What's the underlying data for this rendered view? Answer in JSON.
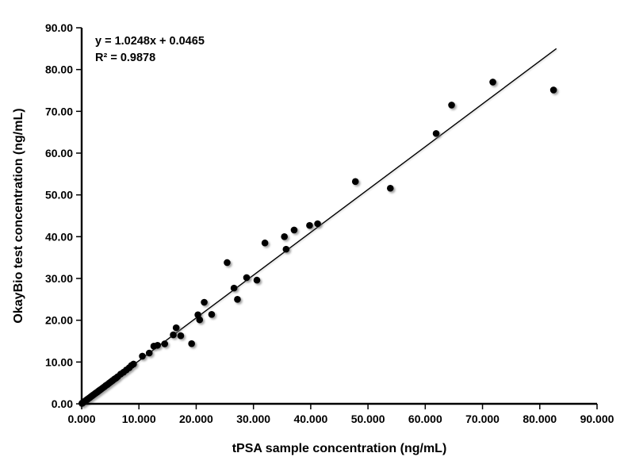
{
  "figure": {
    "kind": "scatter-plot-with-trendline"
  },
  "chart_data": {
    "type": "scatter",
    "title": "",
    "xlabel": "tPSA sample concentration (ng/mL)",
    "ylabel": "OkayBio test concentration (ng/mL)",
    "xlim": [
      0,
      90
    ],
    "ylim": [
      0,
      90
    ],
    "grid": false,
    "legend": false,
    "marker_color": "#000000",
    "line_color": "#000000",
    "x_tick_values": [
      0,
      10,
      20,
      30,
      40,
      50,
      60,
      70,
      80,
      90
    ],
    "x_tick_labels": [
      "0.000",
      "10.000",
      "20.000",
      "30.000",
      "40.000",
      "50.000",
      "60.000",
      "70.000",
      "80.000",
      "90.000"
    ],
    "y_tick_values": [
      0,
      10,
      20,
      30,
      40,
      50,
      60,
      70,
      80,
      90
    ],
    "y_tick_labels": [
      "0.00",
      "10.00",
      "20.00",
      "30.00",
      "40.00",
      "50.00",
      "60.00",
      "70.00",
      "80.00",
      "90.00"
    ],
    "trendline": {
      "slope": 1.0248,
      "intercept": 0.0465,
      "x_start": 0,
      "x_end": 82.9,
      "equation": "y = 1.0248x + 0.0465",
      "r_squared": "R² = 0.9878"
    },
    "points": [
      [
        0.05,
        0.1
      ],
      [
        0.1,
        0.15
      ],
      [
        0.15,
        0.2
      ],
      [
        0.2,
        0.26
      ],
      [
        0.3,
        0.36
      ],
      [
        0.4,
        0.45
      ],
      [
        0.5,
        0.55
      ],
      [
        0.6,
        0.66
      ],
      [
        0.7,
        0.76
      ],
      [
        0.8,
        0.88
      ],
      [
        0.9,
        0.96
      ],
      [
        1.0,
        1.08
      ],
      [
        1.1,
        1.16
      ],
      [
        1.25,
        1.33
      ],
      [
        1.4,
        1.46
      ],
      [
        1.55,
        1.62
      ],
      [
        1.7,
        1.8
      ],
      [
        1.85,
        1.93
      ],
      [
        2.0,
        2.1
      ],
      [
        2.2,
        2.29
      ],
      [
        2.4,
        2.5
      ],
      [
        2.6,
        2.7
      ],
      [
        2.8,
        2.89
      ],
      [
        3.0,
        3.12
      ],
      [
        3.2,
        3.31
      ],
      [
        3.45,
        3.56
      ],
      [
        3.7,
        3.82
      ],
      [
        3.95,
        4.06
      ],
      [
        4.2,
        4.35
      ],
      [
        4.5,
        4.61
      ],
      [
        4.8,
        4.95
      ],
      [
        5.1,
        5.26
      ],
      [
        5.4,
        5.56
      ],
      [
        5.7,
        5.9
      ],
      [
        6.0,
        6.16
      ],
      [
        6.3,
        6.5
      ],
      [
        6.8,
        7.1
      ],
      [
        7.3,
        7.55
      ],
      [
        7.8,
        8.1
      ],
      [
        8.3,
        8.62
      ],
      [
        8.7,
        9.2
      ],
      [
        9.05,
        9.5
      ],
      [
        10.6,
        11.4
      ],
      [
        11.8,
        12.15
      ],
      [
        12.6,
        13.8
      ],
      [
        13.25,
        14.0
      ],
      [
        14.5,
        14.35
      ],
      [
        16.0,
        16.5
      ],
      [
        16.5,
        18.2
      ],
      [
        17.3,
        16.3
      ],
      [
        19.2,
        14.4
      ],
      [
        20.3,
        21.3
      ],
      [
        20.6,
        20.1
      ],
      [
        21.4,
        24.3
      ],
      [
        22.7,
        21.4
      ],
      [
        25.4,
        33.8
      ],
      [
        26.6,
        27.7
      ],
      [
        27.2,
        25.0
      ],
      [
        28.8,
        30.2
      ],
      [
        30.6,
        29.6
      ],
      [
        32.0,
        38.5
      ],
      [
        35.4,
        40.0
      ],
      [
        35.7,
        37.0
      ],
      [
        37.1,
        41.6
      ],
      [
        39.8,
        42.7
      ],
      [
        41.2,
        43.1
      ],
      [
        47.8,
        53.2
      ],
      [
        53.9,
        51.6
      ],
      [
        61.9,
        64.7
      ],
      [
        64.6,
        71.5
      ],
      [
        71.8,
        77.0
      ],
      [
        82.4,
        75.1
      ]
    ]
  }
}
